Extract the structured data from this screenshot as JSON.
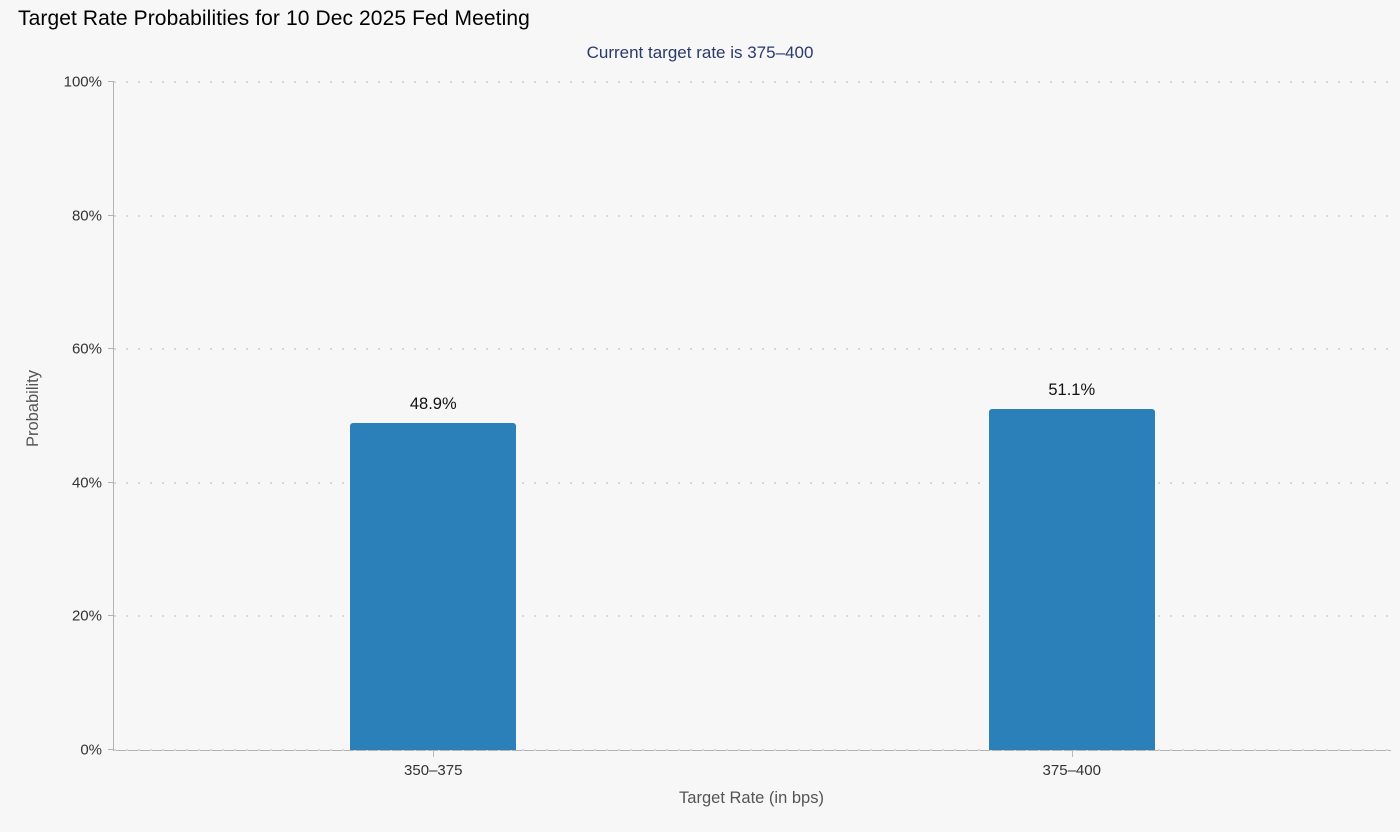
{
  "header": {
    "title": "Target Rate Probabilities for 10 Dec 2025 Fed Meeting",
    "subtitle": "Current target rate is 375–400"
  },
  "chart_data": {
    "type": "bar",
    "title": "Target Rate Probabilities for 10 Dec 2025 Fed Meeting",
    "subtitle": "Current target rate is 375–400",
    "categories": [
      "350–375",
      "375–400"
    ],
    "values": [
      48.9,
      51.1
    ],
    "value_labels": [
      "48.9%",
      "51.1%"
    ],
    "xlabel": "Target Rate (in bps)",
    "ylabel": "Probability",
    "ylim": [
      0,
      100
    ],
    "yticks": [
      0,
      20,
      40,
      60,
      80,
      100
    ],
    "ytick_labels": [
      "0%",
      "20%",
      "40%",
      "60%",
      "80%",
      "100%"
    ],
    "grid": "dotted-horizontal",
    "legend": "none",
    "colors": {
      "background": "#f7f7f8",
      "bar": "#2b80ba",
      "subtitle_text": "#2b3a6d",
      "axis_line": "#b3b3b3",
      "gridline": "#d8d8d8",
      "tick_text": "#333333",
      "axis_title_text": "#555555",
      "value_label_text": "#111111"
    }
  }
}
